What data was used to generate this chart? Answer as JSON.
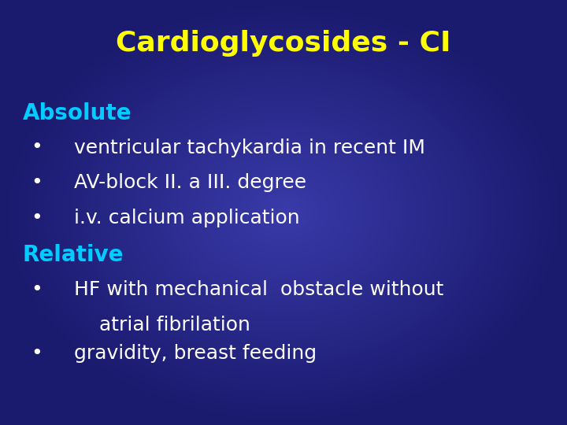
{
  "title": "Cardioglycosides - CI",
  "title_color": "#FFFF00",
  "title_fontsize": 26,
  "bg_center": "#3a3aaa",
  "bg_edge": "#1a1a6e",
  "section_color": "#00ccff",
  "bullet_color": "#ffffff",
  "dot_color": "#ffffff",
  "section_fontsize": 20,
  "bullet_fontsize": 18,
  "sections": [
    {
      "heading": "Absolute",
      "bullets": [
        [
          "ventricular tachykardia in recent IM"
        ],
        [
          "AV-block II. a III. degree"
        ],
        [
          "i.v. calcium application"
        ]
      ]
    },
    {
      "heading": "Relative",
      "bullets": [
        [
          "HF with mechanical  obstacle without",
          "    atrial fibrilation"
        ],
        [
          "gravidity, breast feeding"
        ]
      ]
    }
  ]
}
